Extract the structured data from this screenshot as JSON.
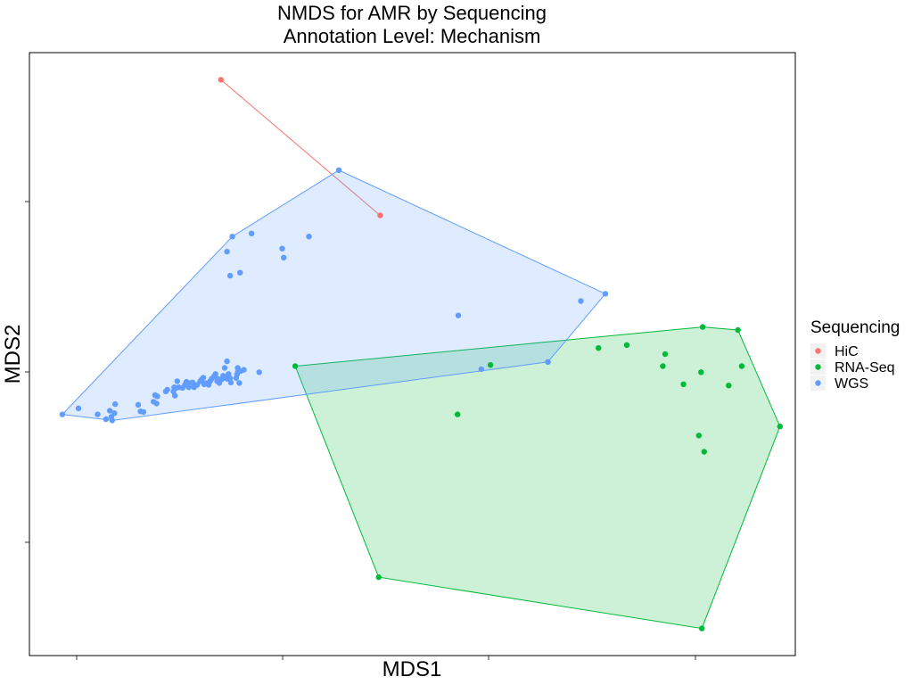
{
  "chart_data": {
    "type": "scatter",
    "title": "NMDS for AMR by Sequencing",
    "subtitle": "Annotation Level: Mechanism",
    "xlabel": "MDS1",
    "ylabel": "MDS2",
    "xlim": [
      0,
      1
    ],
    "ylim": [
      0,
      1
    ],
    "tick_labels_shown": false,
    "grid": false,
    "legend": {
      "title": "Sequencing",
      "placement": "right"
    },
    "series": [
      {
        "name": "HiC",
        "color": "#F8766D",
        "hull": true,
        "points": [
          [
            0.25,
            0.955
          ],
          [
            0.458,
            0.73
          ]
        ]
      },
      {
        "name": "RNA-Seq",
        "color": "#00BA38",
        "hull": true,
        "points": [
          [
            0.347,
            0.48
          ],
          [
            0.559,
            0.4
          ],
          [
            0.602,
            0.482
          ],
          [
            0.743,
            0.51
          ],
          [
            0.78,
            0.515
          ],
          [
            0.827,
            0.48
          ],
          [
            0.83,
            0.5
          ],
          [
            0.854,
            0.45
          ],
          [
            0.877,
            0.47
          ],
          [
            0.913,
            0.448
          ],
          [
            0.881,
            0.338
          ],
          [
            0.874,
            0.365
          ],
          [
            0.879,
            0.545
          ],
          [
            0.925,
            0.54
          ],
          [
            0.93,
            0.48
          ],
          [
            0.98,
            0.38
          ],
          [
            0.878,
            0.045
          ],
          [
            0.456,
            0.13
          ]
        ]
      },
      {
        "name": "WGS",
        "color": "#619CFF",
        "hull": true,
        "points": [
          [
            0.043,
            0.4
          ],
          [
            0.064,
            0.41
          ],
          [
            0.089,
            0.4
          ],
          [
            0.105,
            0.406
          ],
          [
            0.1,
            0.392
          ],
          [
            0.107,
            0.396
          ],
          [
            0.111,
            0.402
          ],
          [
            0.112,
            0.417
          ],
          [
            0.142,
            0.416
          ],
          [
            0.145,
            0.405
          ],
          [
            0.149,
            0.404
          ],
          [
            0.162,
            0.421
          ],
          [
            0.164,
            0.432
          ],
          [
            0.166,
            0.418
          ],
          [
            0.167,
            0.43
          ],
          [
            0.18,
            0.441
          ],
          [
            0.178,
            0.438
          ],
          [
            0.188,
            0.438
          ],
          [
            0.19,
            0.431
          ],
          [
            0.192,
            0.444
          ],
          [
            0.189,
            0.445
          ],
          [
            0.193,
            0.455
          ],
          [
            0.195,
            0.445
          ],
          [
            0.2,
            0.444
          ],
          [
            0.203,
            0.449
          ],
          [
            0.205,
            0.454
          ],
          [
            0.208,
            0.445
          ],
          [
            0.21,
            0.452
          ],
          [
            0.213,
            0.453
          ],
          [
            0.215,
            0.445
          ],
          [
            0.219,
            0.449
          ],
          [
            0.223,
            0.455
          ],
          [
            0.225,
            0.458
          ],
          [
            0.228,
            0.45
          ],
          [
            0.227,
            0.461
          ],
          [
            0.231,
            0.452
          ],
          [
            0.234,
            0.449
          ],
          [
            0.236,
            0.455
          ],
          [
            0.238,
            0.459
          ],
          [
            0.241,
            0.463
          ],
          [
            0.243,
            0.467
          ],
          [
            0.245,
            0.455
          ],
          [
            0.246,
            0.459
          ],
          [
            0.248,
            0.452
          ],
          [
            0.251,
            0.458
          ],
          [
            0.253,
            0.464
          ],
          [
            0.256,
            0.462
          ],
          [
            0.258,
            0.459
          ],
          [
            0.26,
            0.465
          ],
          [
            0.262,
            0.46
          ],
          [
            0.255,
            0.477
          ],
          [
            0.258,
            0.488
          ],
          [
            0.26,
            0.467
          ],
          [
            0.263,
            0.453
          ],
          [
            0.27,
            0.46
          ],
          [
            0.271,
            0.466
          ],
          [
            0.272,
            0.477
          ],
          [
            0.276,
            0.472
          ],
          [
            0.274,
            0.452
          ],
          [
            0.28,
            0.474
          ],
          [
            0.272,
            0.47
          ],
          [
            0.3,
            0.47
          ],
          [
            0.262,
            0.63
          ],
          [
            0.258,
            0.67
          ],
          [
            0.275,
            0.635
          ],
          [
            0.29,
            0.7
          ],
          [
            0.33,
            0.675
          ],
          [
            0.332,
            0.66
          ],
          [
            0.365,
            0.695
          ],
          [
            0.56,
            0.564
          ],
          [
            0.677,
            0.487
          ],
          [
            0.72,
            0.588
          ],
          [
            0.752,
            0.6
          ],
          [
            0.59,
            0.475
          ],
          [
            0.404,
            0.805
          ],
          [
            0.265,
            0.695
          ],
          [
            0.108,
            0.39
          ]
        ]
      }
    ]
  }
}
